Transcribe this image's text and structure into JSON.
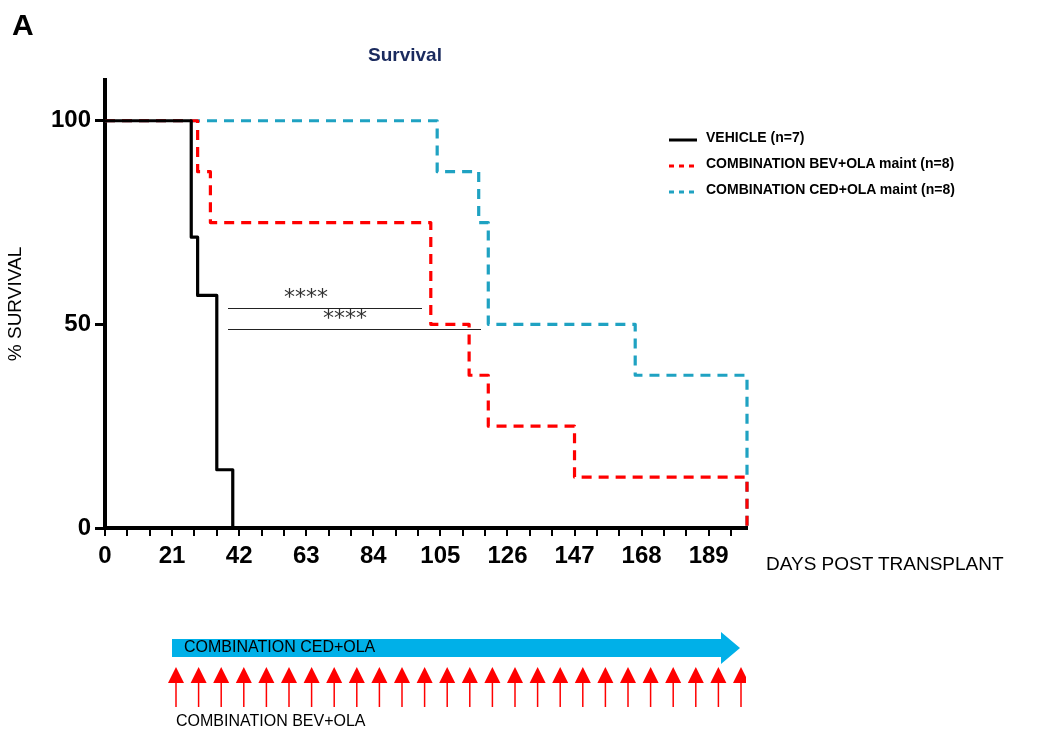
{
  "chart_data": {
    "type": "step",
    "title": "Survival",
    "xlabel": "DAYS POST TRANSPLANT",
    "ylabel": "% SURVIVAL",
    "series": [
      {
        "name": "VEHICLE (n=7)",
        "color": "#000000",
        "line_style": "solid",
        "x": [
          0,
          27,
          29,
          35,
          40
        ],
        "values": [
          100,
          71.4,
          57.1,
          14.3,
          0
        ]
      },
      {
        "name": "COMBINATION BEV+OLA maint (n=8)",
        "color": "#ff0000",
        "line_style": "dashed",
        "x": [
          0,
          29,
          33,
          102,
          114,
          120,
          147,
          201
        ],
        "values": [
          100,
          87.5,
          75,
          50,
          37.5,
          25,
          12.5,
          0
        ]
      },
      {
        "name": "COMBINATION CED+OLA maint (n=8)",
        "color": "#1fa2c2",
        "line_style": "dashed",
        "x": [
          0,
          104,
          117,
          120,
          166,
          201
        ],
        "values": [
          100,
          87.5,
          75,
          50,
          37.5,
          0
        ]
      }
    ],
    "xlim": [
      0,
      201
    ],
    "xticks": [
      0,
      {
        "value": 7,
        "label": null
      },
      {
        "value": 14,
        "label": null
      },
      21,
      {
        "value": 28,
        "label": null
      },
      {
        "value": 35,
        "label": null
      },
      42,
      {
        "value": 49,
        "label": null
      },
      {
        "value": 56,
        "label": null
      },
      63,
      {
        "value": 70,
        "label": null
      },
      {
        "value": 77,
        "label": null
      },
      84,
      {
        "value": 91,
        "label": null
      },
      {
        "value": 98,
        "label": null
      },
      105,
      {
        "value": 112,
        "label": null
      },
      {
        "value": 119,
        "label": null
      },
      126,
      {
        "value": 133,
        "label": null
      },
      {
        "value": 140,
        "label": null
      },
      147,
      {
        "value": 154,
        "label": null
      },
      {
        "value": 161,
        "label": null
      },
      168,
      {
        "value": 175,
        "label": null
      },
      {
        "value": 182,
        "label": null
      },
      189,
      {
        "value": 196,
        "label": null
      }
    ],
    "ylim": [
      0,
      110
    ],
    "yticks": [
      0,
      50,
      100
    ],
    "grid": false,
    "legend": "top right",
    "marker": "none",
    "annotations": [
      "****",
      "****",
      "COMBINATION CED+OLA",
      "COMBINATION BEV+OLA",
      "A"
    ]
  }
}
